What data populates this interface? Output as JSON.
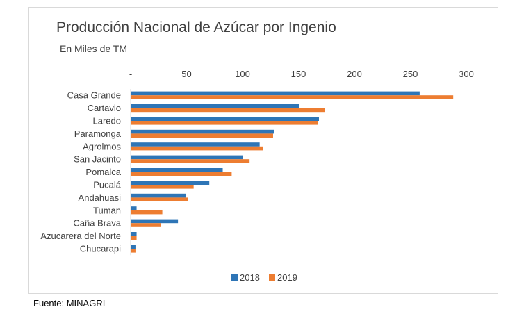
{
  "source_note": "Fuente: MINAGRI",
  "colors": {
    "series_2018": "#2e75b6",
    "series_2019": "#ed7d31"
  },
  "chart_data": {
    "type": "bar",
    "orientation": "horizontal",
    "title": "Producción Nacional de Azúcar por Ingenio",
    "subtitle": "En Miles de TM",
    "xlim": [
      0,
      300
    ],
    "xticks": [
      0,
      50,
      100,
      150,
      200,
      250,
      300
    ],
    "xtick_labels": [
      "-",
      "50",
      "100",
      "150",
      "200",
      "250",
      "300"
    ],
    "grid": false,
    "legend_position": "bottom",
    "categories": [
      "Casa Grande",
      "Cartavio",
      "Laredo",
      "Paramonga",
      "Agrolmos",
      "San Jacinto",
      "Pomalca",
      "Pucalá",
      "Andahuasi",
      "Tuman",
      "Caña Brava",
      "Azucarera del Norte",
      "Chucarapi"
    ],
    "series": [
      {
        "name": "2018",
        "values": [
          258,
          150,
          168,
          128,
          115,
          100,
          82,
          70,
          49,
          5,
          42,
          5,
          4
        ]
      },
      {
        "name": "2019",
        "values": [
          288,
          173,
          167,
          127,
          118,
          106,
          90,
          56,
          51,
          28,
          27,
          5,
          4
        ]
      }
    ]
  }
}
